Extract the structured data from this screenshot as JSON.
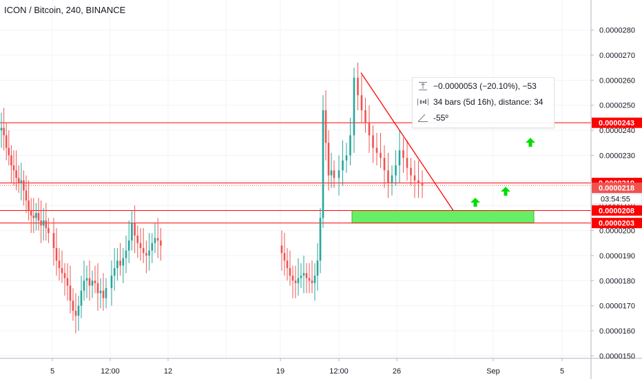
{
  "title": "ICON / Bitcoin, 240, BINANCE",
  "chart_data": {
    "type": "candlestick",
    "title": "ICON / Bitcoin, 240, BINANCE",
    "symbol": "ICON / Bitcoin",
    "interval": "240",
    "exchange": "BINANCE",
    "x_ticks": [
      "5",
      "12:00",
      "12",
      "19",
      "12:00",
      "26",
      "Sep",
      "5"
    ],
    "y_ticks": [
      "0.0000150",
      "0.0000160",
      "0.0000170",
      "0.0000180",
      "0.0000190",
      "0.0000200",
      "0.0000210",
      "0.0000220",
      "0.0000230",
      "0.0000240",
      "0.0000250",
      "0.0000260",
      "0.0000270",
      "0.0000280"
    ],
    "ylim": [
      1.49e-05,
      2.92e-05
    ],
    "grid": true,
    "colors": {
      "up": "#26a69a",
      "down": "#ef5350",
      "level": "#ff0000",
      "zone": "#66ee66",
      "arrow": "#00dd00"
    },
    "horizontal_levels": [
      {
        "value": 2.43e-05,
        "label": "0.0000243"
      },
      {
        "value": 2.19e-05,
        "label": "0.0000219"
      },
      {
        "value": 2.08e-05,
        "label": "0.0000208"
      },
      {
        "value": 2.03e-05,
        "label": "0.0000203"
      }
    ],
    "last_price": {
      "value": 2.18e-05,
      "label": "0.0000218"
    },
    "countdown": "03:54:55",
    "support_zone": {
      "from": 2.03e-05,
      "to": 2.08e-05
    },
    "trendline": {
      "from": 2.63e-05,
      "to": 2.08e-05
    },
    "measure": {
      "price_change": "−0.0000053 (−20.10%), −53",
      "bars": "34 bars (5d 16h), distance: 34",
      "angle": "-55º"
    },
    "arrows": [
      "up",
      "up",
      "up"
    ],
    "candle_segments": [
      [
        2.4e-05,
        2.41e-05,
        2.38e-05,
        2.33e-05,
        2.3e-05,
        2.26e-05,
        2.24e-05,
        2.21e-05,
        2.19e-05,
        2.2e-05,
        2.16e-05,
        2.12e-05,
        2.08e-05,
        2.06e-05,
        2.05e-05,
        2.07e-05,
        2.04e-05,
        2.02e-05,
        2.04e-05,
        2.01e-05,
        1.99e-05
      ],
      [
        1.99e-05,
        1.93e-05,
        1.88e-05,
        1.85e-05,
        1.83e-05,
        1.81e-05,
        1.78e-05,
        1.72e-05,
        1.68e-05,
        1.66e-05,
        1.7e-05,
        1.76e-05,
        1.8e-05,
        1.81e-05,
        1.78e-05,
        1.8e-05,
        1.79e-05,
        1.75e-05,
        1.76e-05,
        1.73e-05,
        1.77e-05
      ],
      [
        1.77e-05,
        1.82e-05,
        1.85e-05,
        1.88e-05,
        1.86e-05,
        1.89e-05,
        1.92e-05,
        1.96e-05,
        2.03e-05,
        1.98e-05,
        1.95e-05,
        1.93e-05,
        1.91e-05,
        1.9e-05,
        1.92e-05,
        1.95e-05,
        1.97e-05,
        1.96e-05,
        1.94e-05
      ],
      [
        1.94e-05,
        1.91e-05,
        1.88e-05,
        1.85e-05,
        1.82e-05,
        1.8e-05,
        1.79e-05,
        1.81e-05,
        1.82e-05,
        1.83e-05,
        1.81e-05,
        1.8e-05,
        1.79e-05,
        1.82e-05,
        1.88e-05,
        2.05e-05,
        2.48e-05,
        2.35e-05,
        2.22e-05,
        2.24e-05,
        2.21e-05
      ],
      [
        2.21e-05,
        2.24e-05,
        2.28e-05,
        2.3e-05,
        2.38e-05,
        2.61e-05,
        2.54e-05,
        2.48e-05,
        2.43e-05,
        2.38e-05,
        2.33e-05,
        2.31e-05,
        2.29e-05,
        2.24e-05,
        2.19e-05,
        2.22e-05,
        2.26e-05,
        2.32e-05,
        2.29e-05,
        2.25e-05,
        2.22e-05,
        2.2e-05,
        2.19e-05,
        2.18e-05
      ]
    ]
  }
}
